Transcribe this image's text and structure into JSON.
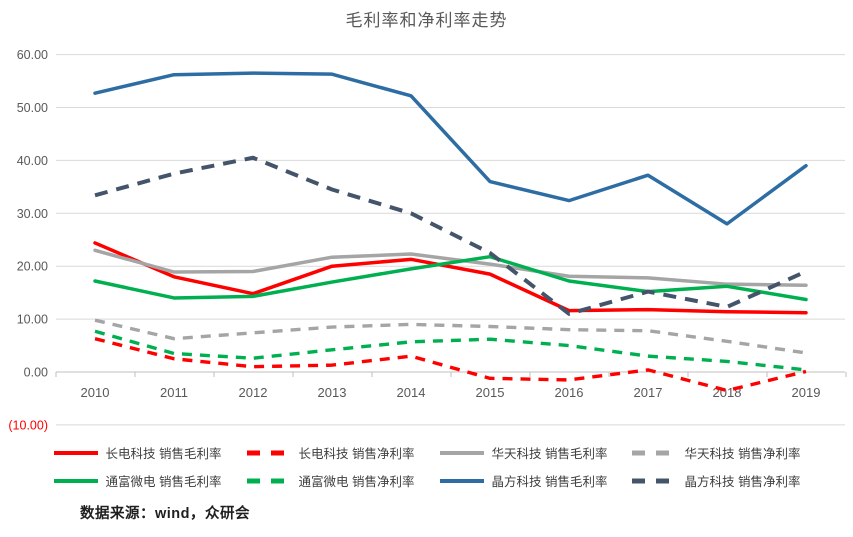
{
  "title": "毛利率和净利率走势",
  "source_note": "数据来源：wind，众研会",
  "chart_data": {
    "type": "line",
    "title": "毛利率和净利率走势",
    "x_labels": [
      "2010",
      "2011",
      "2012",
      "2013",
      "2014",
      "2015",
      "2016",
      "2017",
      "2018",
      "2019"
    ],
    "ylim": [
      -10,
      60
    ],
    "grid": true,
    "legend_position": "bottom",
    "axis_label_color": "#595959",
    "grid_color": "#d9d9d9",
    "axis_line_color": "#bfbfbf",
    "yticks": [
      {
        "value": 60,
        "label": "60.00"
      },
      {
        "value": 50,
        "label": "50.00"
      },
      {
        "value": 40,
        "label": "40.00"
      },
      {
        "value": 30,
        "label": "30.00"
      },
      {
        "value": 20,
        "label": "20.00"
      },
      {
        "value": 10,
        "label": "10.00"
      },
      {
        "value": 0,
        "label": "0.00"
      },
      {
        "value": -10,
        "label": "(10.00)",
        "color": "#ff0000"
      }
    ],
    "series": [
      {
        "name": "长电科技 销售毛利率",
        "color": "#ff0000",
        "dashed": false,
        "values": [
          24.4,
          18.0,
          14.8,
          20.0,
          21.3,
          18.5,
          11.6,
          11.8,
          11.4,
          11.2
        ]
      },
      {
        "name": "长电科技 销售净利率",
        "color": "#ff0000",
        "dashed": true,
        "values": [
          6.3,
          2.5,
          1.0,
          1.3,
          3.0,
          -1.2,
          -1.5,
          0.4,
          -3.5,
          0.1
        ]
      },
      {
        "name": "华天科技 销售毛利率",
        "color": "#a5a5a5",
        "dashed": false,
        "values": [
          23.0,
          18.9,
          19.0,
          21.7,
          22.3,
          20.4,
          18.1,
          17.8,
          16.6,
          16.4
        ]
      },
      {
        "name": "华天科技 销售净利率",
        "color": "#a5a5a5",
        "dashed": true,
        "values": [
          9.8,
          6.3,
          7.4,
          8.5,
          9.0,
          8.6,
          8.0,
          7.8,
          5.8,
          3.6
        ]
      },
      {
        "name": "通富微电 销售毛利率",
        "color": "#00b050",
        "dashed": false,
        "values": [
          17.2,
          14.0,
          14.3,
          17.0,
          19.5,
          21.8,
          17.2,
          15.2,
          16.2,
          13.7
        ]
      },
      {
        "name": "通富微电 销售净利率",
        "color": "#00b050",
        "dashed": true,
        "values": [
          7.7,
          3.5,
          2.6,
          4.2,
          5.7,
          6.2,
          5.0,
          3.0,
          2.0,
          0.4
        ]
      },
      {
        "name": "晶方科技 销售毛利率",
        "color": "#2e6da4",
        "dashed": false,
        "values": [
          52.7,
          56.2,
          56.5,
          56.3,
          52.2,
          36.0,
          32.4,
          37.2,
          28.0,
          39.0
        ]
      },
      {
        "name": "晶方科技 销售净利率",
        "color": "#44546a",
        "dashed": true,
        "values": [
          33.4,
          37.5,
          40.5,
          34.5,
          30.0,
          22.5,
          11.0,
          15.2,
          12.3,
          19.0
        ]
      }
    ],
    "legend_rows": [
      [
        0,
        1,
        2,
        3
      ],
      [
        4,
        5,
        6,
        7
      ]
    ]
  }
}
